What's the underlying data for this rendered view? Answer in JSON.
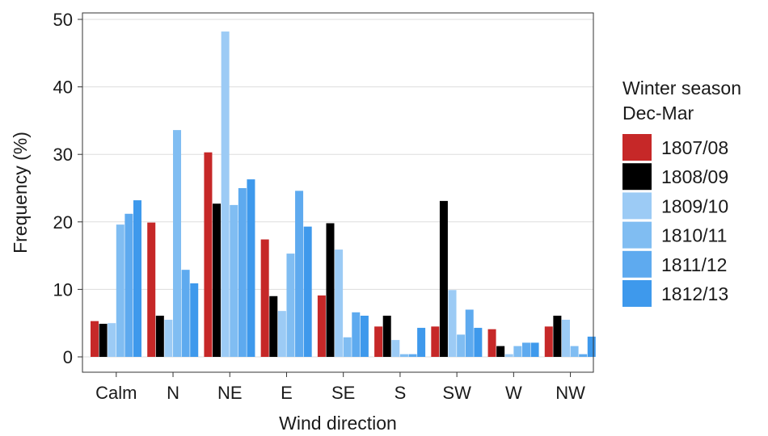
{
  "chart_data": {
    "type": "bar",
    "title": "",
    "xlabel": "Wind direction",
    "ylabel": "Frequency (%)",
    "ylim": [
      0,
      50
    ],
    "yticks": [
      0,
      10,
      20,
      30,
      40,
      50
    ],
    "grid": "horizontal",
    "legend_placement": "right",
    "legend_title": [
      "Winter season",
      "Dec-Mar"
    ],
    "categories": [
      "Calm",
      "N",
      "NE",
      "E",
      "SE",
      "S",
      "SW",
      "W",
      "NW"
    ],
    "series": [
      {
        "name": "1807/08",
        "color": "#c62828",
        "values": [
          5.3,
          19.9,
          30.3,
          17.4,
          9.1,
          4.5,
          4.5,
          4.1,
          4.5
        ]
      },
      {
        "name": "1808/09",
        "color": "#000000",
        "values": [
          4.9,
          6.1,
          22.7,
          9.0,
          19.8,
          6.1,
          23.1,
          1.6,
          6.1
        ]
      },
      {
        "name": "1809/10",
        "color": "#9ccbf5",
        "values": [
          5.0,
          5.5,
          48.2,
          6.8,
          15.9,
          2.5,
          9.9,
          0.4,
          5.5
        ]
      },
      {
        "name": "1810/11",
        "color": "#80bdf2",
        "values": [
          19.6,
          33.6,
          22.5,
          15.3,
          2.9,
          0.4,
          3.3,
          1.6,
          1.6
        ]
      },
      {
        "name": "1811/12",
        "color": "#5eaaef",
        "values": [
          21.2,
          12.9,
          25.0,
          24.6,
          6.6,
          0.4,
          7.0,
          2.1,
          0.4
        ]
      },
      {
        "name": "1812/13",
        "color": "#3e99ec",
        "values": [
          23.2,
          10.9,
          26.3,
          19.3,
          6.1,
          4.3,
          4.3,
          2.1,
          3.0
        ]
      }
    ]
  }
}
